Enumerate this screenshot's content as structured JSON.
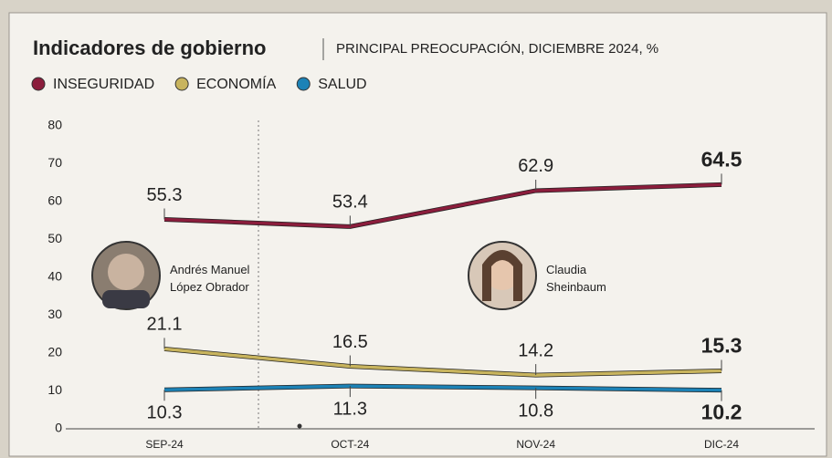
{
  "chart_data": {
    "type": "line",
    "title": "Indicadores de gobierno",
    "subtitle": "PRINCIPAL PREOCUPACIÓN, DICIEMBRE 2024, %",
    "categories": [
      "SEP-24",
      "OCT-24",
      "NOV-24",
      "DIC-24"
    ],
    "series": [
      {
        "name": "INSEGURIDAD",
        "color": "#8b1d3c",
        "values": [
          55.3,
          53.4,
          62.9,
          64.5
        ]
      },
      {
        "name": "ECONOMÍA",
        "color": "#c8b45e",
        "values": [
          21.1,
          16.5,
          14.2,
          15.3
        ]
      },
      {
        "name": "SALUD",
        "color": "#1c82b6",
        "values": [
          10.3,
          11.3,
          10.8,
          10.2
        ]
      }
    ],
    "ylim": [
      0,
      80
    ],
    "yticks": [
      0,
      10,
      20,
      30,
      40,
      50,
      60,
      70,
      80
    ],
    "grid": false,
    "annotations": [
      "Andrés Manuel López Obrador",
      "Claudia Sheinbaum"
    ]
  }
}
